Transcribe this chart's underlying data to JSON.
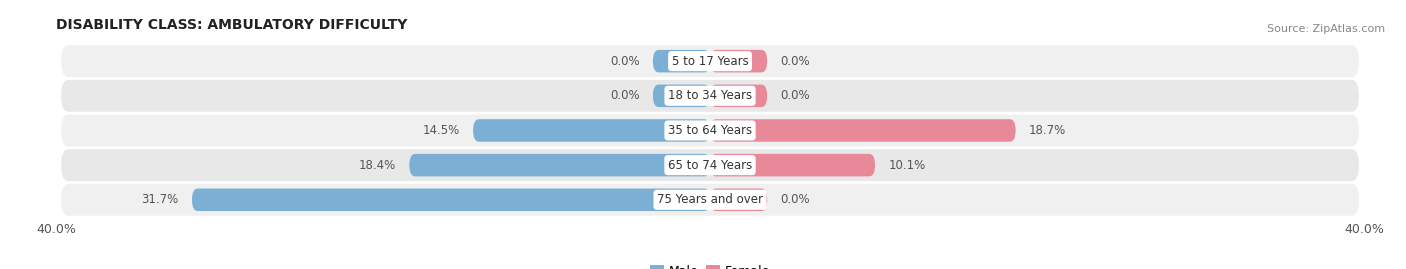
{
  "title": "DISABILITY CLASS: AMBULATORY DIFFICULTY",
  "source": "Source: ZipAtlas.com",
  "categories": [
    "5 to 17 Years",
    "18 to 34 Years",
    "35 to 64 Years",
    "65 to 74 Years",
    "75 Years and over"
  ],
  "male_values": [
    0.0,
    0.0,
    14.5,
    18.4,
    31.7
  ],
  "female_values": [
    0.0,
    0.0,
    18.7,
    10.1,
    0.0
  ],
  "male_color": "#7bafd4",
  "female_color": "#e8899a",
  "row_bg_colors": [
    "#f0f0f0",
    "#e8e8e8",
    "#f0f0f0",
    "#e8e8e8",
    "#f0f0f0"
  ],
  "axis_limit": 40.0,
  "min_bar_val": 3.5,
  "title_fontsize": 10,
  "label_fontsize": 8.5,
  "value_fontsize": 8.5,
  "tick_fontsize": 9,
  "source_fontsize": 8
}
